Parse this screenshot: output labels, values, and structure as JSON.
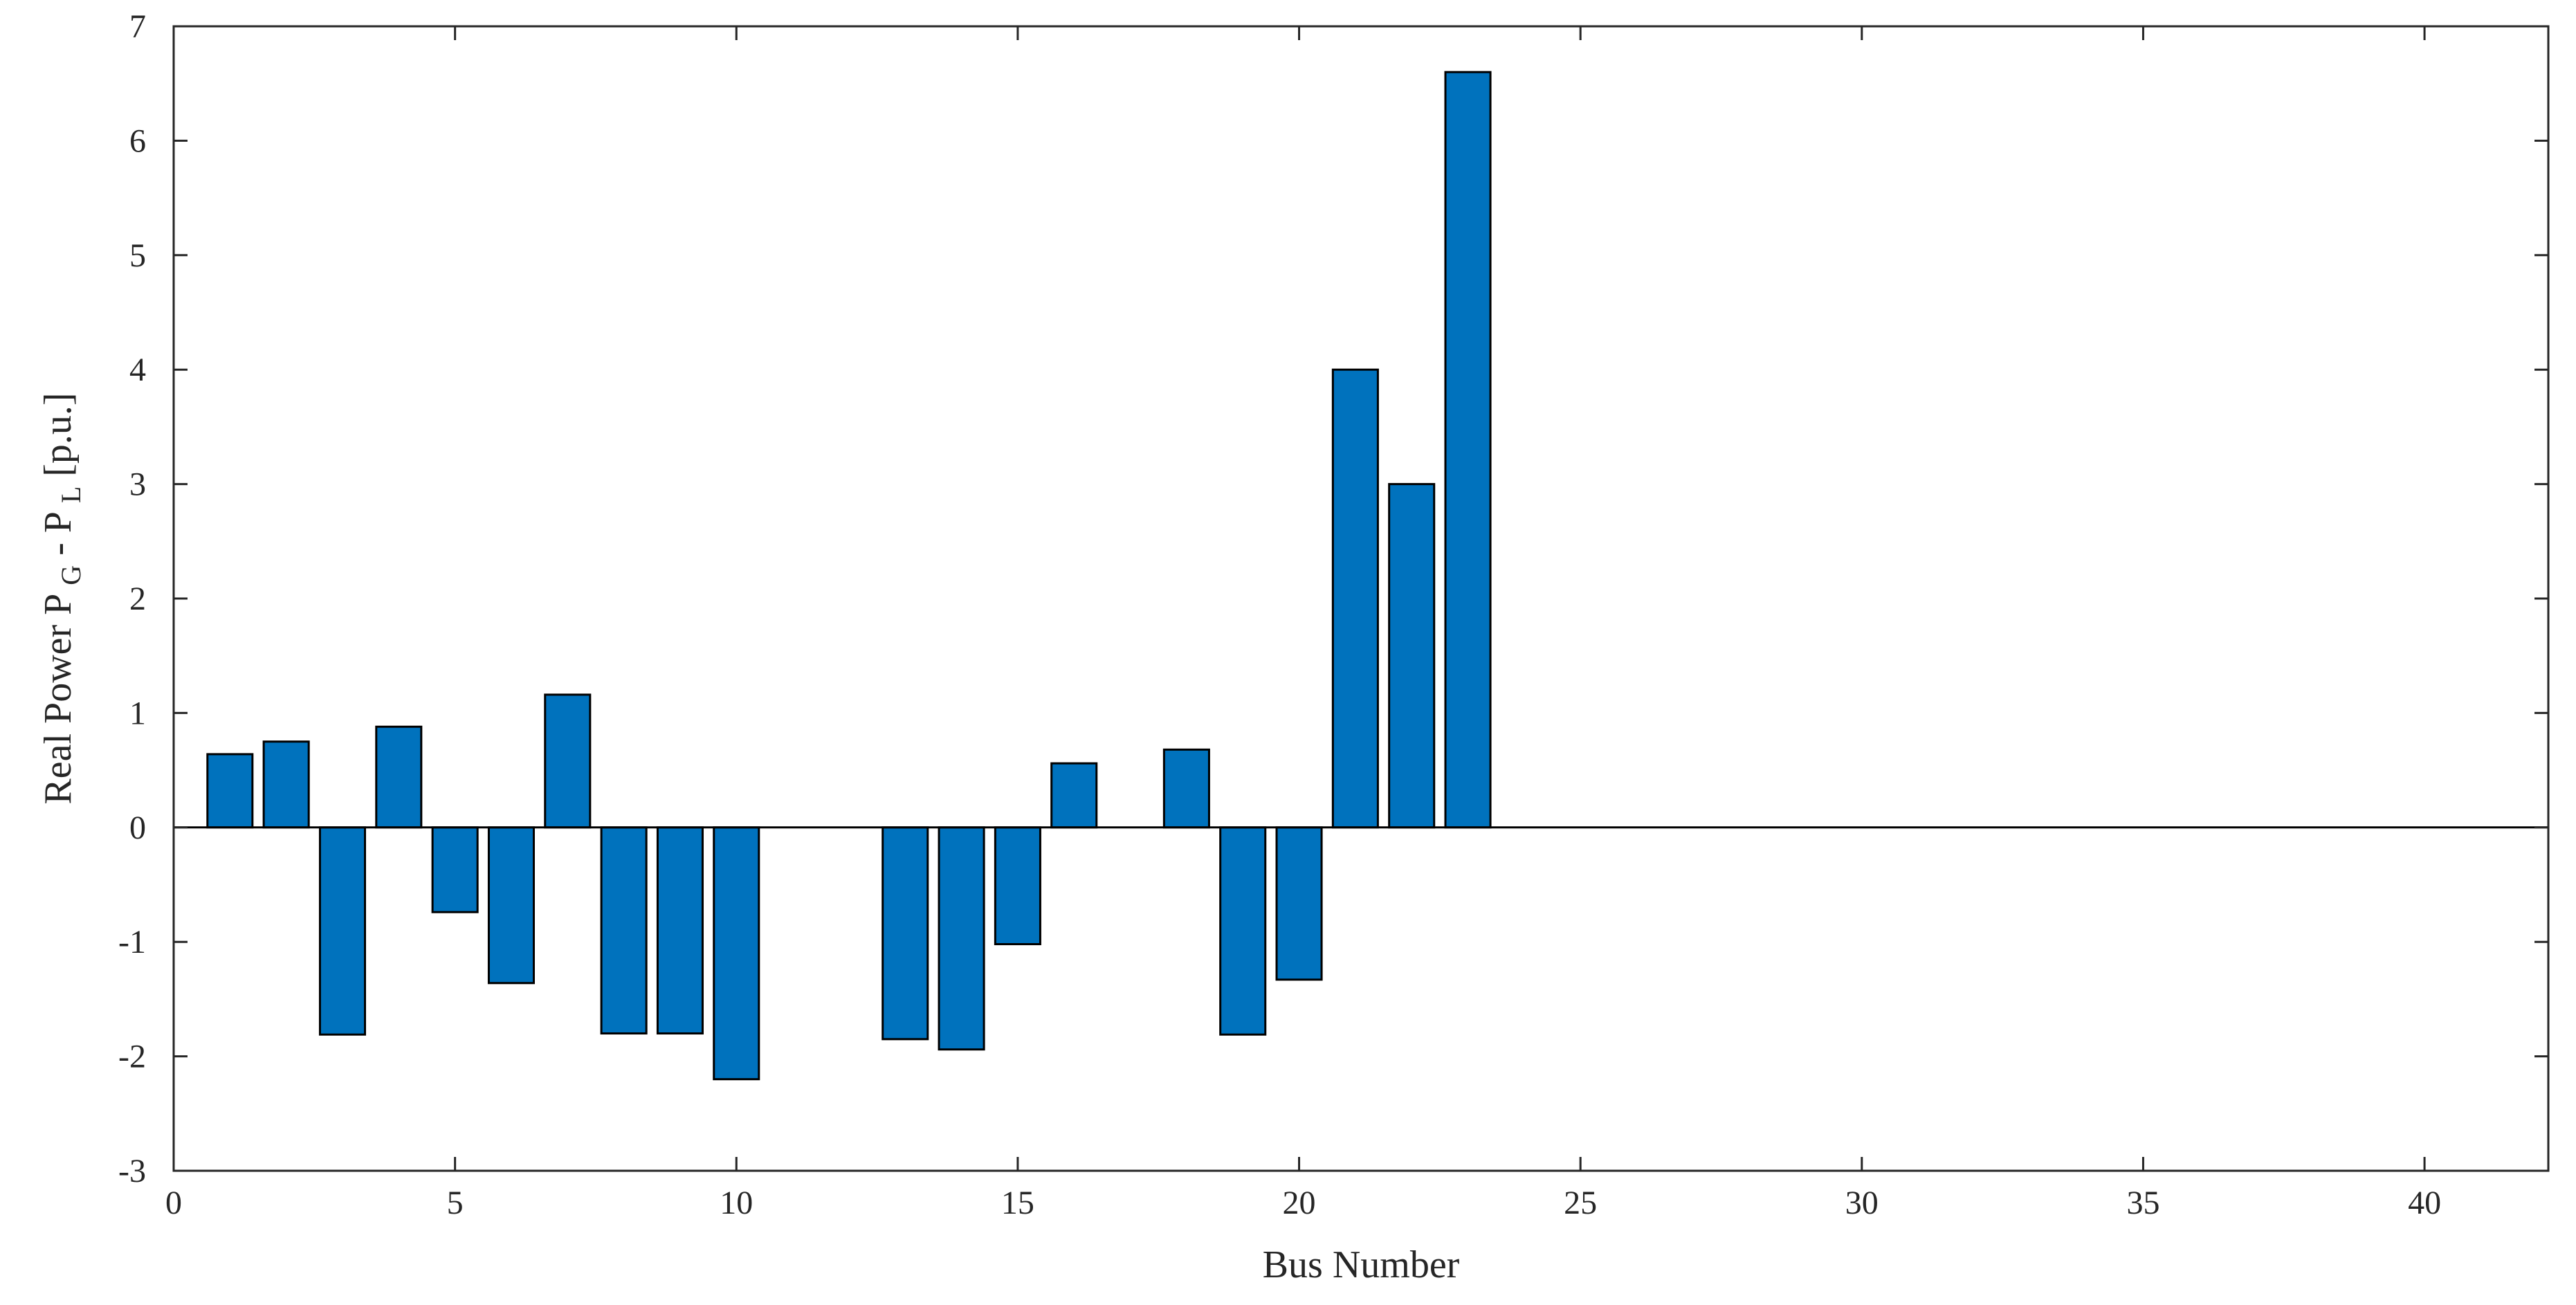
{
  "chart_data": {
    "type": "bar",
    "title": "",
    "xlabel": "Bus Number",
    "ylabel": {
      "main": "Real Power P",
      "sub1": "G",
      "mid": " - P",
      "sub2": "L",
      "unit": " [p.u.]"
    },
    "xlim": [
      0,
      42.2
    ],
    "ylim": [
      -3,
      7
    ],
    "xticks": [
      0,
      5,
      10,
      15,
      20,
      25,
      30,
      35,
      40
    ],
    "yticks": [
      -3,
      -2,
      -1,
      0,
      1,
      2,
      3,
      4,
      5,
      6,
      7
    ],
    "grid": false,
    "bar_width": 0.8,
    "x": [
      1,
      2,
      3,
      4,
      5,
      6,
      7,
      8,
      9,
      10,
      11,
      12,
      13,
      14,
      15,
      16,
      17,
      18,
      19,
      20,
      21,
      22,
      23,
      24,
      25,
      26,
      27,
      28,
      29,
      30,
      31,
      32,
      33,
      34,
      35,
      36,
      37,
      38,
      39,
      40,
      41
    ],
    "values": [
      0.64,
      0.75,
      -1.81,
      0.88,
      -0.74,
      -1.36,
      1.16,
      -1.8,
      -1.8,
      -2.2,
      0,
      0,
      -1.85,
      -1.94,
      -1.02,
      0.56,
      0,
      0.68,
      -1.81,
      -1.33,
      4.0,
      3.0,
      6.6,
      0,
      0,
      0,
      0,
      0,
      0,
      0,
      0,
      0,
      0,
      0,
      0,
      0,
      0,
      0,
      0,
      0,
      0
    ],
    "colors": {
      "bar": "#0072BD",
      "edge": "#000000",
      "axis": "#262626"
    }
  }
}
